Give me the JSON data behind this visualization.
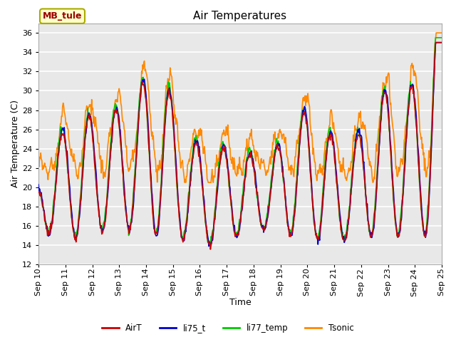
{
  "title": "Air Temperatures",
  "xlabel": "Time",
  "ylabel": "Air Temperature (C)",
  "ylim": [
    12,
    37
  ],
  "yticks": [
    12,
    14,
    16,
    18,
    20,
    22,
    24,
    26,
    28,
    30,
    32,
    34,
    36
  ],
  "xtick_labels": [
    "Sep 10",
    "Sep 11",
    "Sep 12",
    "Sep 13",
    "Sep 14",
    "Sep 15",
    "Sep 16",
    "Sep 17",
    "Sep 18",
    "Sep 19",
    "Sep 20",
    "Sep 21",
    "Sep 22",
    "Sep 23",
    "Sep 24",
    "Sep 25"
  ],
  "series_colors": {
    "AirT": "#cc0000",
    "li75_t": "#0000cc",
    "li77_temp": "#00cc00",
    "Tsonic": "#ff8800"
  },
  "series_linewidths": {
    "AirT": 1.2,
    "li75_t": 1.2,
    "li77_temp": 1.2,
    "Tsonic": 1.2
  },
  "legend_label": "MB_tule",
  "legend_label_color": "#990000",
  "legend_box_facecolor": "#ffffcc",
  "legend_box_edgecolor": "#aaaa00",
  "bg_color": "#e8e8e8",
  "grid_color": "white",
  "title_fontsize": 11,
  "axis_label_fontsize": 9,
  "tick_fontsize": 8
}
